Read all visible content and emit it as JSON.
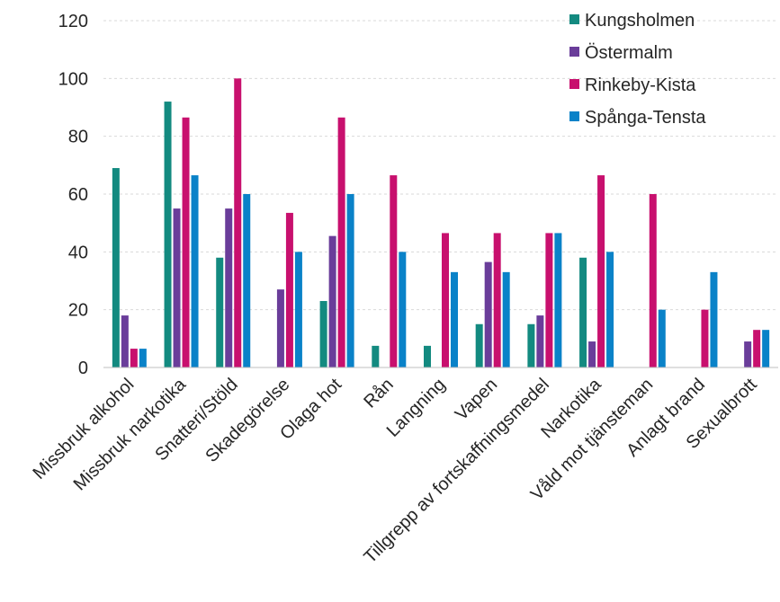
{
  "chart_data": {
    "type": "bar",
    "categories": [
      "Missbruk alkohol",
      "Missbruk narkotika",
      "Snatteri/Stöld",
      "Skadegörelse",
      "Olaga hot",
      "Rån",
      "Langning",
      "Vapen",
      "Tillgrepp av fortskaffningsmedel",
      "Narkotika",
      "Våld mot tjänsteman",
      "Anlagt brand",
      "Sexualbrott"
    ],
    "series": [
      {
        "name": "Kungsholmen",
        "color": "#138a80",
        "values": [
          69,
          92,
          38,
          0,
          23,
          7.5,
          7.5,
          15,
          15,
          38,
          0,
          0,
          0
        ]
      },
      {
        "name": "Östermalm",
        "color": "#6a3d9a",
        "values": [
          18,
          55,
          55,
          27,
          45.5,
          0,
          0,
          36.5,
          18,
          9,
          0,
          0,
          9
        ]
      },
      {
        "name": "Rinkeby-Kista",
        "color": "#c8106e",
        "values": [
          6.5,
          86.5,
          100,
          53.5,
          86.5,
          66.5,
          46.5,
          46.5,
          46.5,
          66.5,
          60,
          20,
          13
        ]
      },
      {
        "name": "Spånga-Tensta",
        "color": "#0a82c8",
        "values": [
          6.5,
          66.5,
          60,
          40,
          60,
          40,
          33,
          33,
          46.5,
          40,
          20,
          33,
          13
        ]
      }
    ],
    "y_ticks": [
      "0",
      "20",
      "40",
      "60",
      "80",
      "100",
      "120"
    ],
    "ylim": [
      0,
      120
    ],
    "grid": true,
    "legend": "top-right"
  }
}
